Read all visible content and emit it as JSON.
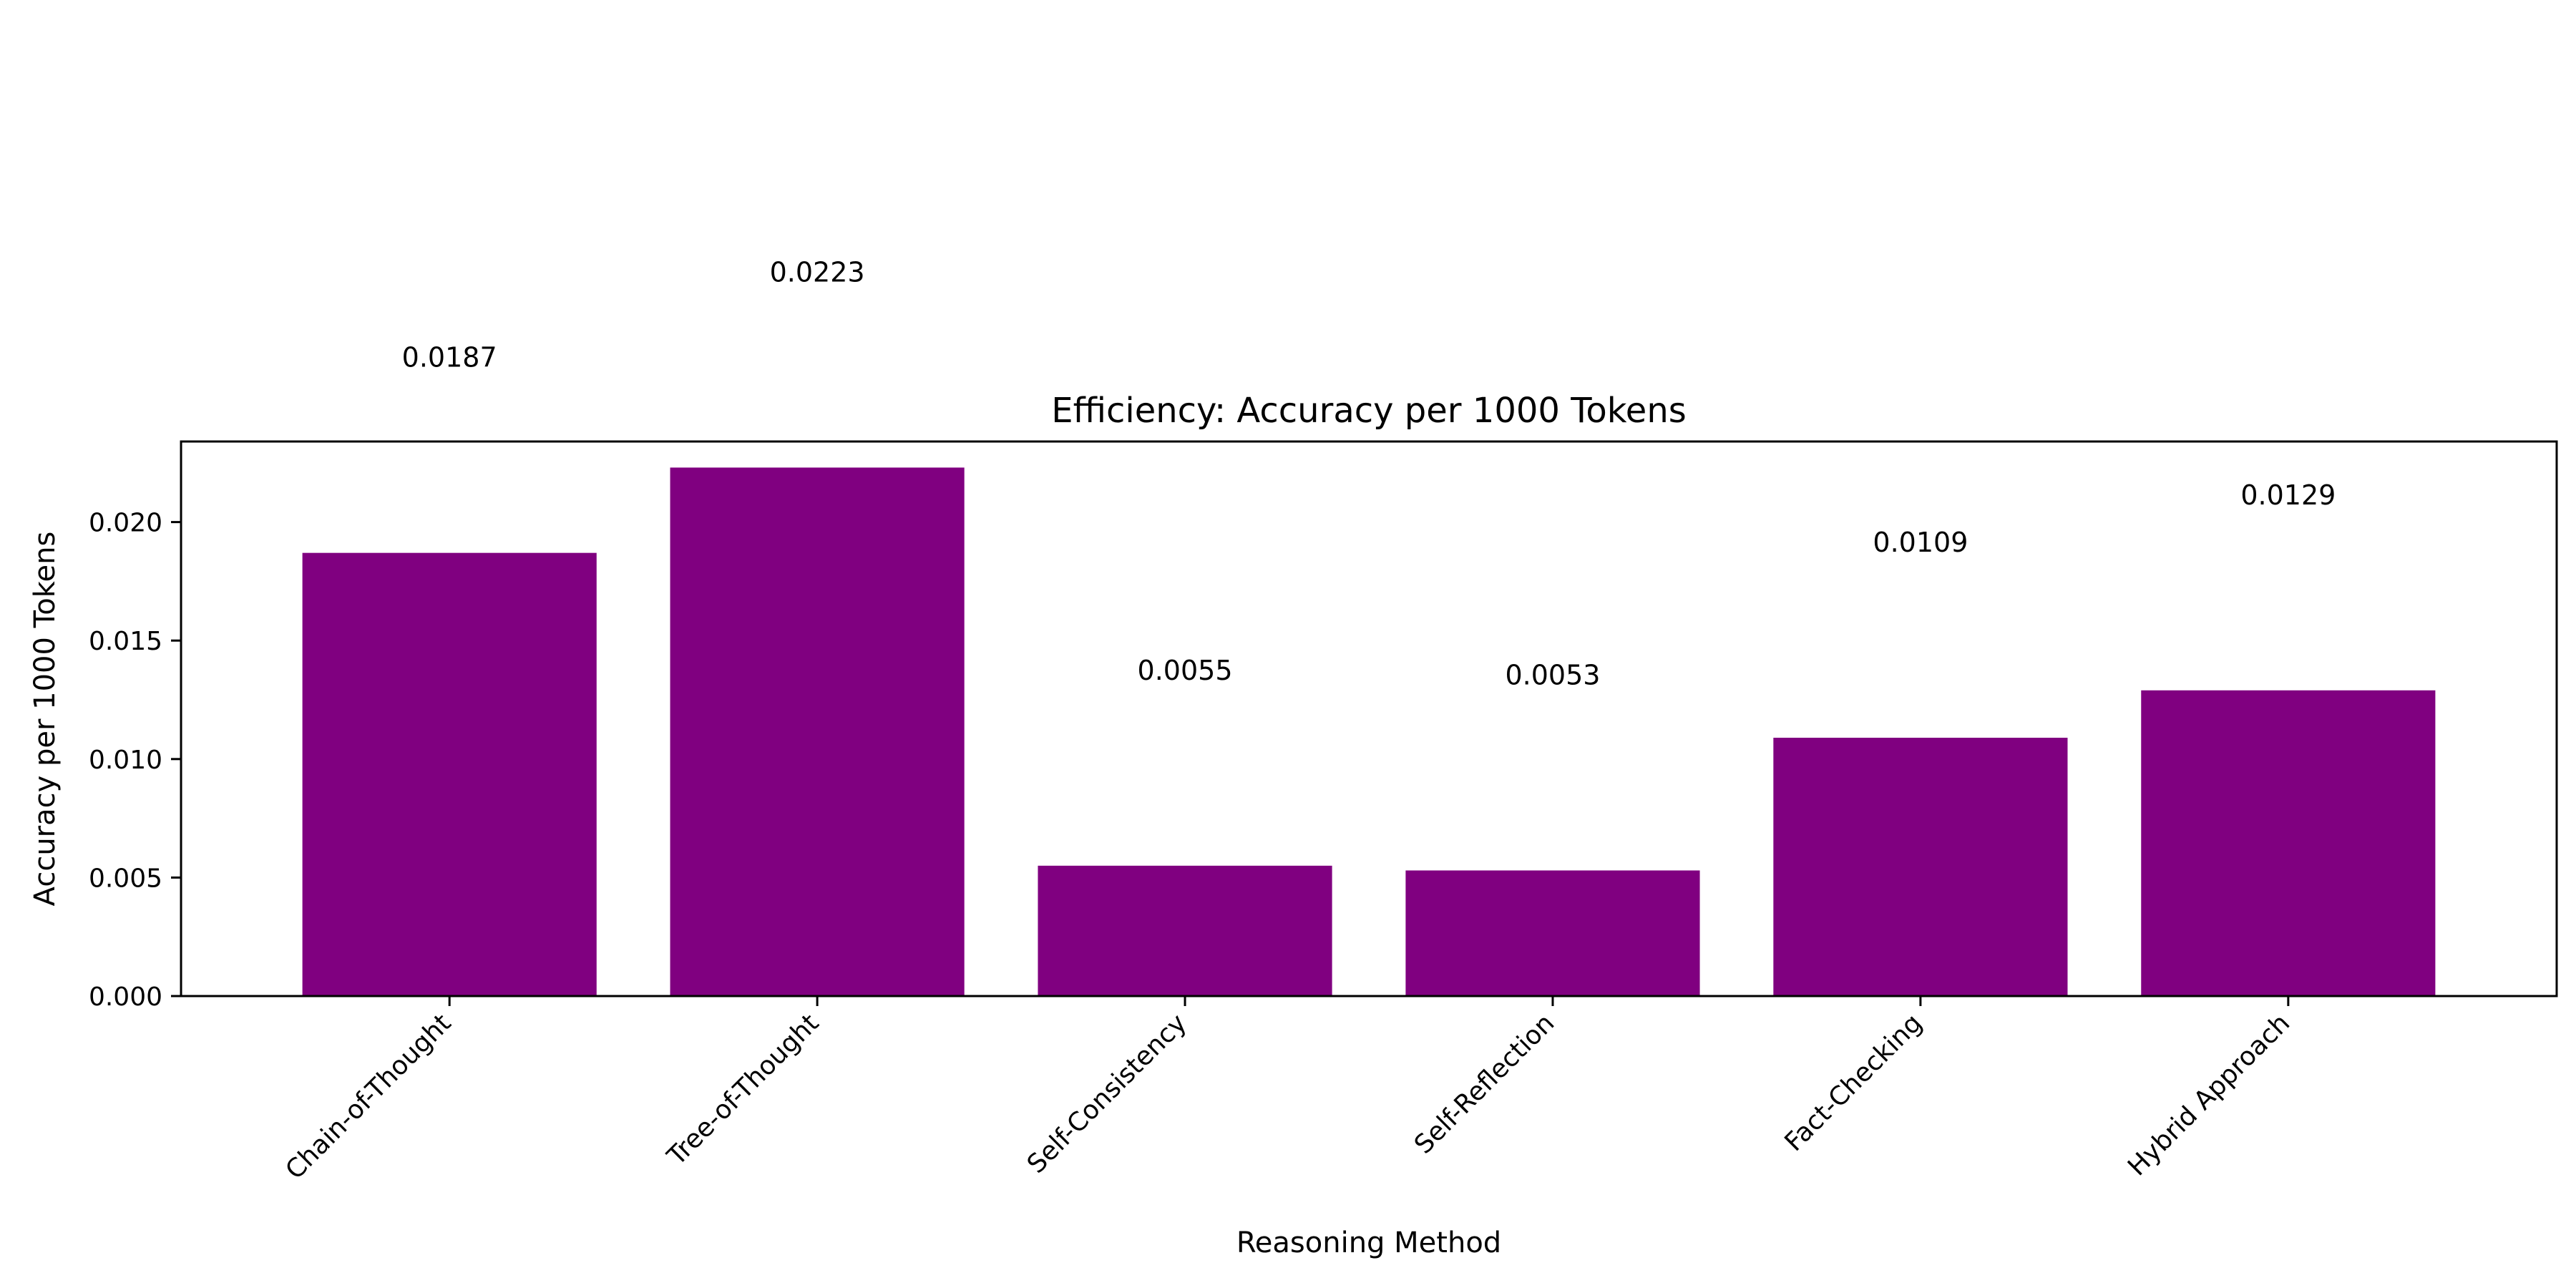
{
  "chart_data": {
    "type": "bar",
    "title": "Efficiency: Accuracy per 1000 Tokens",
    "xlabel": "Reasoning Method",
    "ylabel": "Accuracy per 1000 Tokens",
    "categories": [
      "Chain-of-Thought",
      "Tree-of-Thought",
      "Self-Consistency",
      "Self-Reflection",
      "Fact-Checking",
      "Hybrid Approach"
    ],
    "values": [
      0.0187,
      0.0223,
      0.0055,
      0.0053,
      0.0109,
      0.0129
    ],
    "value_labels": [
      "0.0187",
      "0.0223",
      "0.0055",
      "0.0053",
      "0.0109",
      "0.0129"
    ],
    "ylim": [
      0,
      0.0234
    ],
    "yticks": [
      0.0,
      0.005,
      0.01,
      0.015,
      0.02
    ],
    "ytick_labels": [
      "0.000",
      "0.005",
      "0.010",
      "0.015",
      "0.020"
    ],
    "bar_color": "#800080",
    "grid": false,
    "legend": "none"
  }
}
